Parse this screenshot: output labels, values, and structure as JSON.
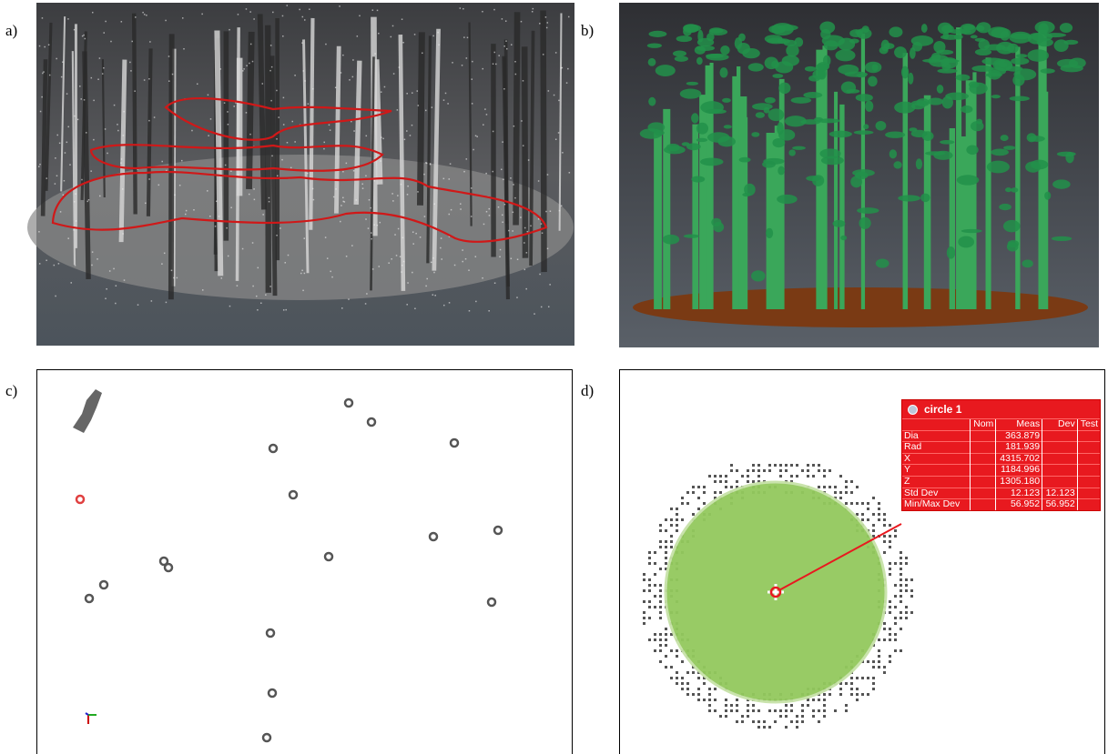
{
  "panels": [
    {
      "label": "a)"
    },
    {
      "label": "b)"
    },
    {
      "label": "c)"
    },
    {
      "label": "d)"
    }
  ],
  "measurement": {
    "title": "circle 1",
    "columns": [
      "Nom",
      "Meas",
      "Dev",
      "Test"
    ],
    "rows": [
      {
        "name": "Dia",
        "meas": "363.879"
      },
      {
        "name": "Rad",
        "meas": "181.939"
      },
      {
        "name": "X",
        "meas": "4315.702"
      },
      {
        "name": "Y",
        "meas": "1184.996"
      },
      {
        "name": "Z",
        "meas": "1305.180"
      },
      {
        "name": "Std Dev",
        "meas": "12.123",
        "dev": "12.123"
      },
      {
        "name": "Min/Max Dev",
        "meas": "56.952",
        "dev": "56.952"
      }
    ]
  }
}
